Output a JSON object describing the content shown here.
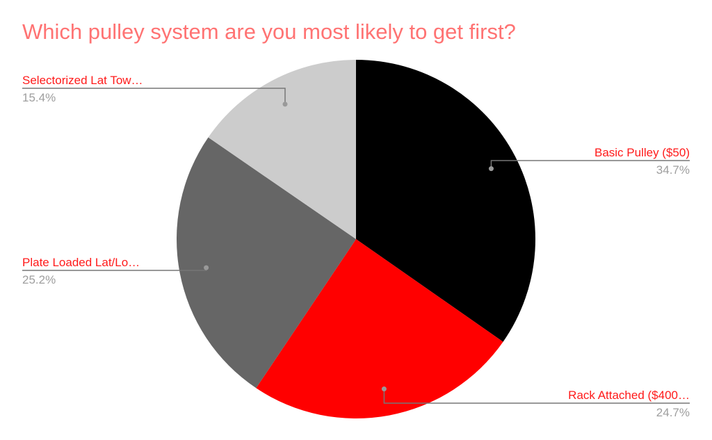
{
  "chart_data": {
    "type": "pie",
    "title": "Which pulley system are you most likely to get first?",
    "slices": [
      {
        "label": "Basic Pulley ($50)",
        "value": 34.7,
        "value_label": "34.7%",
        "color": "#000000"
      },
      {
        "label": "Rack Attached ($400…",
        "value": 24.7,
        "value_label": "24.7%",
        "color": "#ff0000"
      },
      {
        "label": "Plate Loaded Lat/Lo…",
        "value": 25.2,
        "value_label": "25.2%",
        "color": "#666666"
      },
      {
        "label": "Selectorized Lat Tow…",
        "value": 15.4,
        "value_label": "15.4%",
        "color": "#cccccc"
      }
    ],
    "start_angle": "top, clockwise",
    "legend": "none (leader-line labels)",
    "colors": {
      "title": "#ff7373",
      "label": "#ff1a1a",
      "percent": "#9e9e9e"
    }
  }
}
